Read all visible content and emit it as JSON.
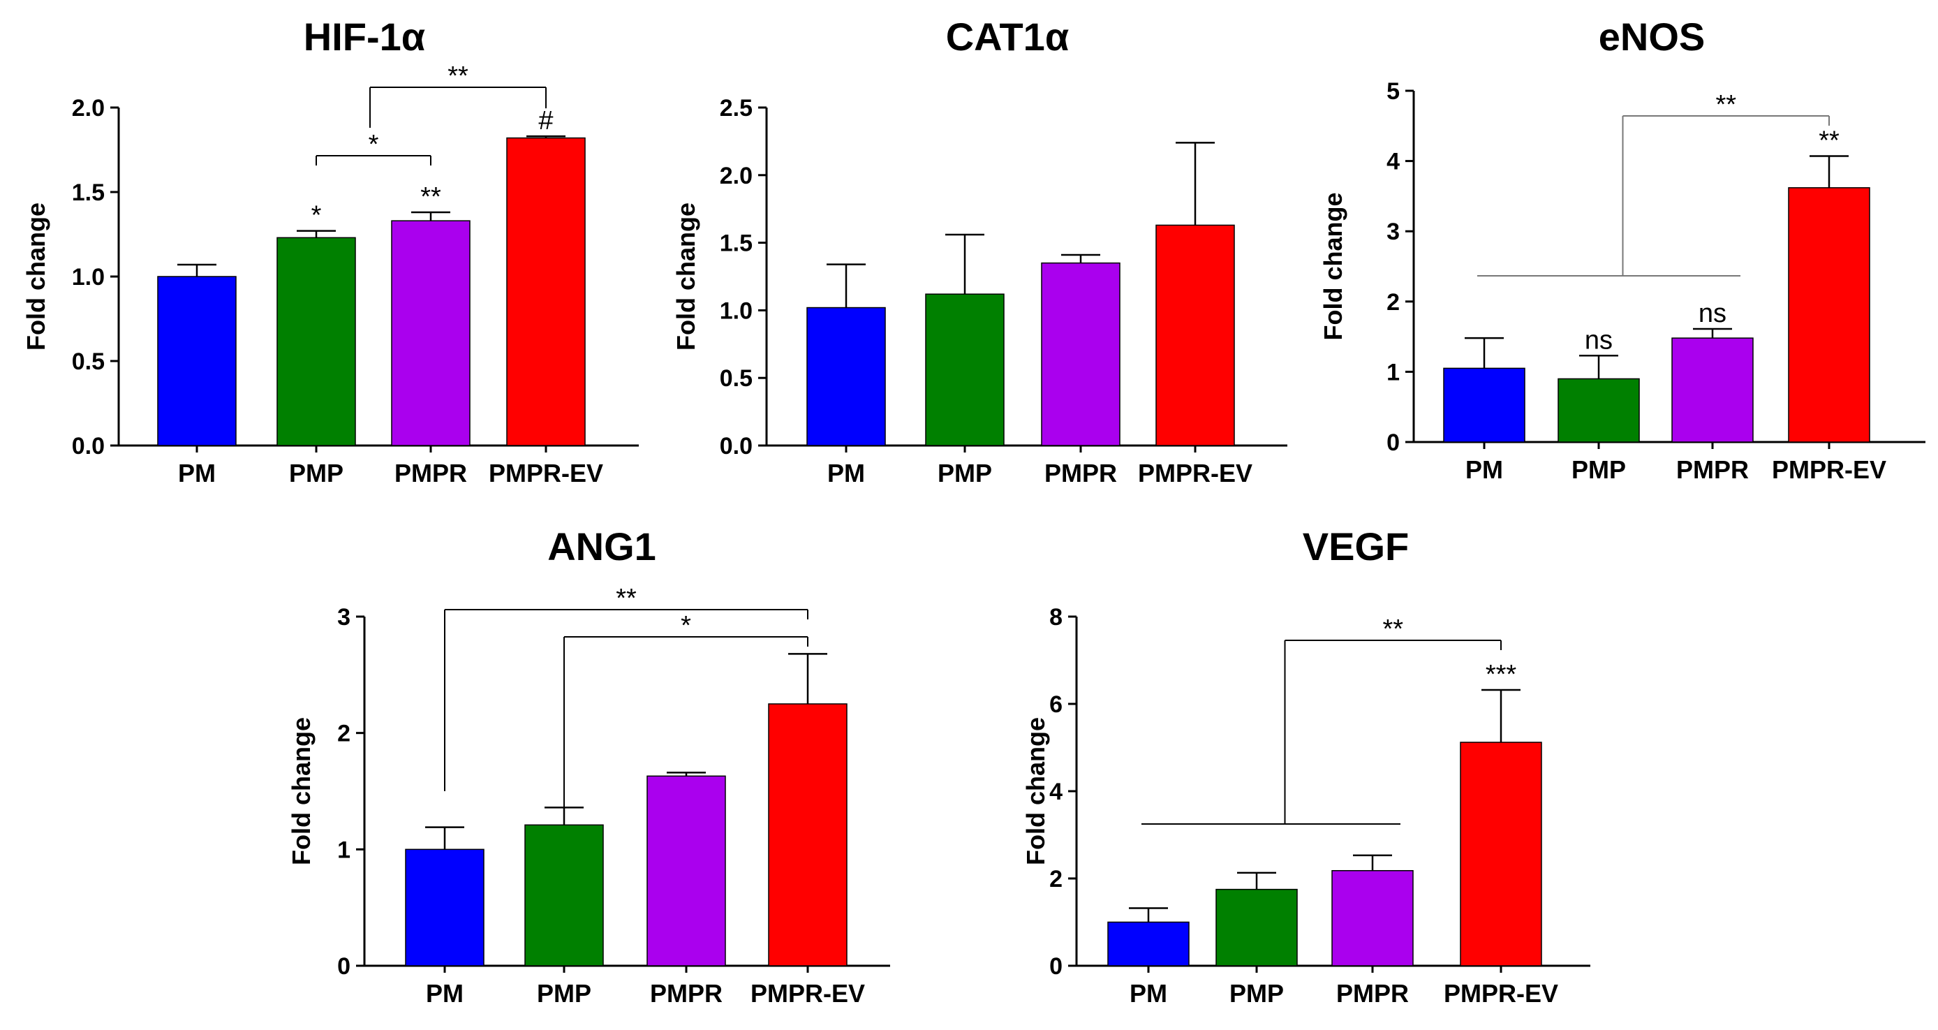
{
  "chart_data": [
    {
      "type": "bar",
      "title": "HIF-1α",
      "ylabel": "Fold change",
      "categories": [
        "PM",
        "PMP",
        "PMPR",
        "PMPR-EV"
      ],
      "values": [
        1.0,
        1.23,
        1.33,
        1.82
      ],
      "errors": [
        0.07,
        0.04,
        0.05,
        0.01
      ],
      "colors": [
        "#0000ff",
        "#008000",
        "#aa00ee",
        "#ff0000"
      ],
      "yticks": [
        "0.0",
        "0.5",
        "1.0",
        "1.5",
        "2.0"
      ],
      "ylim": [
        0,
        2.0
      ],
      "bar_labels": [
        "",
        "*",
        "**",
        "#"
      ],
      "brackets": [
        {
          "from": 1,
          "to": 2,
          "label": "*"
        },
        {
          "from": [
            1,
            2
          ],
          "to": 3,
          "label": "**"
        }
      ]
    },
    {
      "type": "bar",
      "title": "CAT1α",
      "ylabel": "Fold change",
      "categories": [
        "PM",
        "PMP",
        "PMPR",
        "PMPR-EV"
      ],
      "values": [
        1.02,
        1.12,
        1.35,
        1.63
      ],
      "errors": [
        0.32,
        0.44,
        0.06,
        0.61
      ],
      "colors": [
        "#0000ff",
        "#008000",
        "#aa00ee",
        "#ff0000"
      ],
      "yticks": [
        "0.0",
        "0.5",
        "1.0",
        "1.5",
        "2.0",
        "2.5"
      ],
      "ylim": [
        0,
        2.5
      ],
      "bar_labels": [
        "",
        "",
        "",
        ""
      ],
      "brackets": []
    },
    {
      "type": "bar",
      "title": "eNOS",
      "ylabel": "Fold change",
      "categories": [
        "PM",
        "PMP",
        "PMPR",
        "PMPR-EV"
      ],
      "values": [
        1.05,
        0.9,
        1.48,
        3.62
      ],
      "errors": [
        0.43,
        0.33,
        0.13,
        0.45
      ],
      "colors": [
        "#0000ff",
        "#008000",
        "#aa00ee",
        "#ff0000"
      ],
      "yticks": [
        "0",
        "1",
        "2",
        "3",
        "4",
        "5"
      ],
      "ylim": [
        0,
        5
      ],
      "bar_labels": [
        "",
        "ns",
        "ns",
        "**"
      ],
      "brackets": [
        {
          "from": [
            0,
            1,
            2
          ],
          "to": 3,
          "label": "**"
        }
      ]
    },
    {
      "type": "bar",
      "title": "ANG1",
      "ylabel": "Fold change",
      "categories": [
        "PM",
        "PMP",
        "PMPR",
        "PMPR-EV"
      ],
      "values": [
        1.0,
        1.21,
        1.63,
        2.25
      ],
      "errors": [
        0.19,
        0.15,
        0.03,
        0.43
      ],
      "colors": [
        "#0000ff",
        "#008000",
        "#aa00ee",
        "#ff0000"
      ],
      "yticks": [
        "0",
        "1",
        "2",
        "3"
      ],
      "ylim": [
        0,
        3
      ],
      "bar_labels": [
        "",
        "",
        "",
        ""
      ],
      "brackets": [
        {
          "from": 0,
          "to": 3,
          "label": "**"
        },
        {
          "from": 1,
          "to": 3,
          "label": "*"
        }
      ]
    },
    {
      "type": "bar",
      "title": "VEGF",
      "ylabel": "Fold change",
      "categories": [
        "PM",
        "PMP",
        "PMPR",
        "PMPR-EV"
      ],
      "values": [
        1.0,
        1.75,
        2.18,
        5.12
      ],
      "errors": [
        0.32,
        0.38,
        0.35,
        1.2
      ],
      "colors": [
        "#0000ff",
        "#008000",
        "#aa00ee",
        "#ff0000"
      ],
      "yticks": [
        "0",
        "2",
        "4",
        "6",
        "8"
      ],
      "ylim": [
        0,
        8
      ],
      "bar_labels": [
        "",
        "",
        "",
        "***"
      ],
      "brackets": [
        {
          "from": [
            0,
            1,
            2
          ],
          "to": 3,
          "label": "**"
        }
      ]
    }
  ]
}
